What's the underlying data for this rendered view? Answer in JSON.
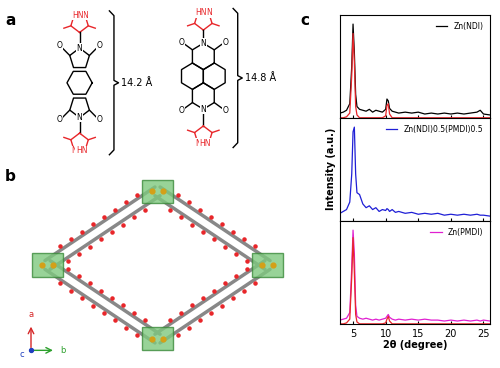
{
  "panel_labels": [
    "a",
    "b",
    "c"
  ],
  "structures": {
    "distances": [
      "14.2 Å",
      "14.8 Å"
    ],
    "atom_labels": {
      "imide_nitrogen": "N",
      "oxygen": "O",
      "pyrazole_n": "N",
      "pyrazole_nh": "HN"
    }
  },
  "crystal_axes": [
    "a",
    "b",
    "c"
  ],
  "chart_data": [
    {
      "type": "line",
      "legend": "upper right",
      "tick_labels": false,
      "xlim": [
        3,
        26
      ],
      "xticks": [
        5,
        10,
        15,
        20,
        25
      ],
      "ylim": [
        0,
        1.1
      ],
      "yticks": [],
      "x": [
        3,
        3.5,
        4,
        4.5,
        4.8,
        5.0,
        5.2,
        5.4,
        5.6,
        6,
        6.5,
        7,
        7.5,
        8,
        8.5,
        9,
        9.5,
        10,
        10.2,
        10.4,
        10.6,
        11,
        11.5,
        12,
        13,
        14,
        15,
        16,
        17,
        18,
        19,
        20,
        21,
        22,
        23,
        24,
        24.5,
        25,
        26
      ],
      "series": [
        {
          "name": "Zn(NDI)",
          "color": "#000000",
          "values": [
            0.05,
            0.06,
            0.08,
            0.15,
            0.55,
            1.0,
            0.7,
            0.25,
            0.12,
            0.09,
            0.08,
            0.07,
            0.09,
            0.06,
            0.08,
            0.07,
            0.06,
            0.09,
            0.2,
            0.18,
            0.1,
            0.07,
            0.06,
            0.05,
            0.06,
            0.05,
            0.06,
            0.04,
            0.05,
            0.04,
            0.05,
            0.04,
            0.05,
            0.04,
            0.05,
            0.06,
            0.08,
            0.04,
            0.03
          ]
        },
        {
          "color": "#e8262a",
          "values": [
            0,
            0,
            0.01,
            0.05,
            0.45,
            0.9,
            0.6,
            0.12,
            0.03,
            0,
            0,
            0,
            0,
            0,
            0,
            0,
            0,
            0.02,
            0.13,
            0.15,
            0.04,
            0,
            0,
            0,
            0,
            0,
            0,
            0,
            0,
            0,
            0,
            0,
            0,
            0,
            0,
            0,
            0,
            0,
            0
          ]
        }
      ]
    },
    {
      "type": "line",
      "legend": "upper right",
      "tick_labels": false,
      "y_label": "Intensity (a.u.)",
      "xlim": [
        3,
        26
      ],
      "xticks": [
        5,
        10,
        15,
        20,
        25
      ],
      "ylim": [
        0,
        1.1
      ],
      "yticks": [],
      "x": [
        3,
        3.5,
        4,
        4.5,
        4.8,
        5.0,
        5.2,
        5.4,
        5.6,
        6,
        6.5,
        7,
        7.5,
        8,
        8.5,
        9,
        9.5,
        10,
        10.2,
        10.4,
        10.6,
        11,
        11.5,
        12,
        13,
        14,
        15,
        16,
        17,
        18,
        19,
        20,
        21,
        22,
        23,
        24,
        24.5,
        25,
        26
      ],
      "series": [
        {
          "name": "Zn(NDI)0.5(PMDI)0.5",
          "color": "#1f1fd6",
          "values": [
            0.08,
            0.1,
            0.12,
            0.2,
            0.5,
            0.95,
            1.0,
            0.5,
            0.3,
            0.28,
            0.18,
            0.14,
            0.16,
            0.12,
            0.14,
            0.1,
            0.12,
            0.11,
            0.13,
            0.12,
            0.1,
            0.12,
            0.09,
            0.1,
            0.08,
            0.09,
            0.07,
            0.08,
            0.07,
            0.08,
            0.06,
            0.07,
            0.06,
            0.07,
            0.06,
            0.07,
            0.06,
            0.06,
            0.05
          ]
        }
      ]
    },
    {
      "type": "line",
      "legend": "upper right",
      "tick_labels": "x",
      "x_label": "2θ (degree)",
      "xlim": [
        3,
        26
      ],
      "xticks": [
        5,
        10,
        15,
        20,
        25
      ],
      "ylim": [
        0,
        1.1
      ],
      "yticks": [],
      "x": [
        3,
        3.5,
        4,
        4.5,
        4.8,
        5.0,
        5.2,
        5.4,
        5.6,
        6,
        6.5,
        7,
        7.5,
        8,
        8.5,
        9,
        9.5,
        10,
        10.2,
        10.4,
        10.6,
        11,
        11.5,
        12,
        13,
        14,
        15,
        16,
        17,
        18,
        19,
        20,
        21,
        22,
        23,
        24,
        24.5,
        25,
        26
      ],
      "series": [
        {
          "name": "Zn(PMDI)",
          "color": "#e020d0",
          "values": [
            0.04,
            0.05,
            0.06,
            0.12,
            0.6,
            1.0,
            0.75,
            0.2,
            0.08,
            0.06,
            0.05,
            0.06,
            0.05,
            0.04,
            0.05,
            0.04,
            0.05,
            0.06,
            0.08,
            0.1,
            0.07,
            0.05,
            0.04,
            0.05,
            0.04,
            0.05,
            0.04,
            0.05,
            0.04,
            0.04,
            0.03,
            0.04,
            0.03,
            0.04,
            0.03,
            0.04,
            0.03,
            0.04,
            0.03
          ]
        },
        {
          "color": "#e8262a",
          "values": [
            0,
            0,
            0.01,
            0.05,
            0.5,
            0.92,
            0.55,
            0.1,
            0.02,
            0,
            0,
            0,
            0,
            0,
            0,
            0,
            0,
            0.01,
            0.05,
            0.08,
            0.03,
            0,
            0,
            0,
            0,
            0,
            0,
            0,
            0,
            0,
            0,
            0,
            0,
            0,
            0,
            0,
            0,
            0,
            0
          ]
        }
      ]
    }
  ]
}
